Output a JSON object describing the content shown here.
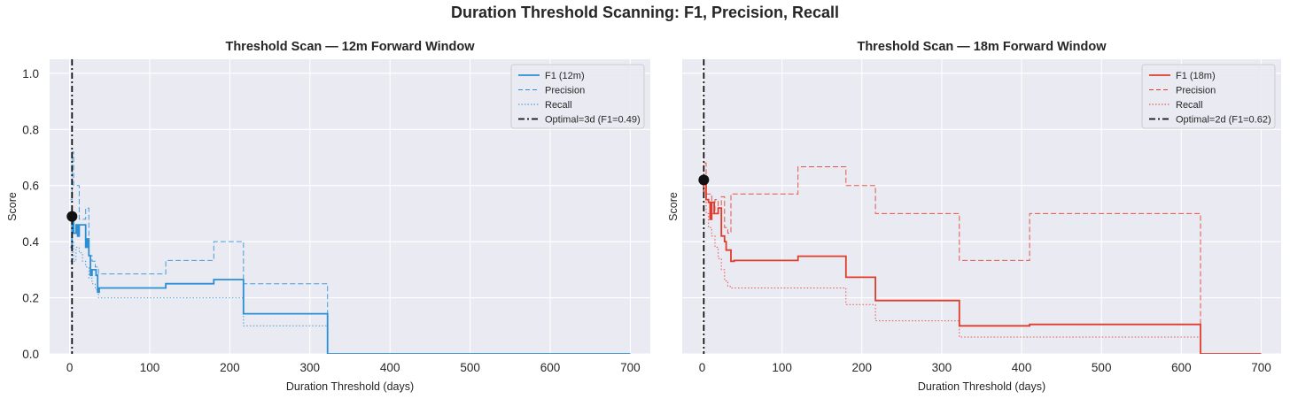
{
  "suptitle": "Duration Threshold Scanning: F1, Precision, Recall",
  "colors": {
    "panel_bg": "#eaeaf2",
    "grid": "#ffffff",
    "blue": "#2b8fd6",
    "red": "#e03c2c",
    "optimal": "#111111"
  },
  "chart_data": [
    {
      "type": "line",
      "title": "Threshold Scan — 12m Forward Window",
      "xlabel": "Duration Threshold (days)",
      "ylabel": "Score",
      "xlim": [
        -25,
        725
      ],
      "ylim": [
        0,
        1.05
      ],
      "xticks": [
        0,
        100,
        200,
        300,
        400,
        500,
        600,
        700
      ],
      "yticks": [
        0.0,
        0.2,
        0.4,
        0.6,
        0.8,
        1.0
      ],
      "grid": true,
      "legend_position": "top-right",
      "color": "#2b8fd6",
      "series": [
        {
          "name": "F1 (12m)",
          "style": "solid",
          "x": [
            1,
            3,
            5,
            8,
            10,
            12,
            15,
            20,
            22,
            24,
            26,
            28,
            30,
            33,
            35,
            37,
            40,
            60,
            120,
            180,
            217,
            322,
            322,
            700
          ],
          "y": [
            0.38,
            0.49,
            0.43,
            0.46,
            0.42,
            0.46,
            0.46,
            0.38,
            0.41,
            0.35,
            0.28,
            0.3,
            0.3,
            0.28,
            0.22,
            0.235,
            0.235,
            0.235,
            0.25,
            0.265,
            0.143,
            0.143,
            0.0,
            0.0
          ]
        },
        {
          "name": "Precision",
          "style": "dashed",
          "x": [
            1,
            3,
            5,
            8,
            12,
            16,
            20,
            24,
            28,
            32,
            36,
            40,
            120,
            180,
            217,
            322,
            322,
            700
          ],
          "y": [
            0.55,
            0.72,
            0.6,
            0.6,
            0.48,
            0.48,
            0.52,
            0.35,
            0.33,
            0.31,
            0.285,
            0.285,
            0.333,
            0.4,
            0.25,
            0.25,
            0.0,
            0.0
          ]
        },
        {
          "name": "Recall",
          "style": "dotted",
          "x": [
            1,
            3,
            5,
            8,
            12,
            16,
            20,
            24,
            28,
            32,
            36,
            40,
            120,
            180,
            217,
            322,
            322,
            700
          ],
          "y": [
            0.33,
            0.4,
            0.33,
            0.38,
            0.36,
            0.33,
            0.31,
            0.27,
            0.25,
            0.23,
            0.2,
            0.2,
            0.2,
            0.2,
            0.1,
            0.1,
            0.0,
            0.0
          ]
        }
      ],
      "optimal": {
        "label": "Optimal=3d (F1=0.49)",
        "x": 3,
        "f1": 0.49
      }
    },
    {
      "type": "line",
      "title": "Threshold Scan — 18m Forward Window",
      "xlabel": "Duration Threshold (days)",
      "ylabel": "Score",
      "xlim": [
        -25,
        725
      ],
      "ylim": [
        0,
        1.05
      ],
      "xticks": [
        0,
        100,
        200,
        300,
        400,
        500,
        600,
        700
      ],
      "yticks": [],
      "grid": true,
      "legend_position": "top-right",
      "color": "#e03c2c",
      "series": [
        {
          "name": "F1 (18m)",
          "style": "solid",
          "x": [
            1,
            2,
            5,
            8,
            10,
            12,
            15,
            20,
            24,
            28,
            30,
            33,
            36,
            40,
            120,
            180,
            217,
            322,
            410,
            624,
            624,
            700
          ],
          "y": [
            0.58,
            0.62,
            0.55,
            0.54,
            0.48,
            0.54,
            0.5,
            0.52,
            0.42,
            0.4,
            0.37,
            0.37,
            0.33,
            0.333,
            0.348,
            0.273,
            0.19,
            0.1,
            0.105,
            0.105,
            0.0,
            0.0
          ]
        },
        {
          "name": "Precision",
          "style": "dashed",
          "x": [
            1,
            2,
            5,
            8,
            12,
            16,
            20,
            24,
            28,
            32,
            36,
            40,
            120,
            180,
            217,
            322,
            410,
            624,
            624,
            700
          ],
          "y": [
            0.6,
            0.68,
            0.57,
            0.57,
            0.5,
            0.55,
            0.5,
            0.56,
            0.45,
            0.43,
            0.57,
            0.57,
            0.667,
            0.6,
            0.5,
            0.333,
            0.5,
            0.5,
            0.0,
            0.0
          ]
        },
        {
          "name": "Recall",
          "style": "dotted",
          "x": [
            1,
            2,
            5,
            8,
            12,
            16,
            20,
            24,
            28,
            32,
            36,
            40,
            120,
            180,
            217,
            322,
            410,
            624,
            624,
            700
          ],
          "y": [
            0.6,
            0.58,
            0.5,
            0.45,
            0.42,
            0.38,
            0.34,
            0.3,
            0.26,
            0.24,
            0.235,
            0.235,
            0.235,
            0.176,
            0.118,
            0.06,
            0.06,
            0.06,
            0.0,
            0.0
          ]
        }
      ],
      "optimal": {
        "label": "Optimal=2d (F1=0.62)",
        "x": 2,
        "f1": 0.62
      }
    }
  ]
}
